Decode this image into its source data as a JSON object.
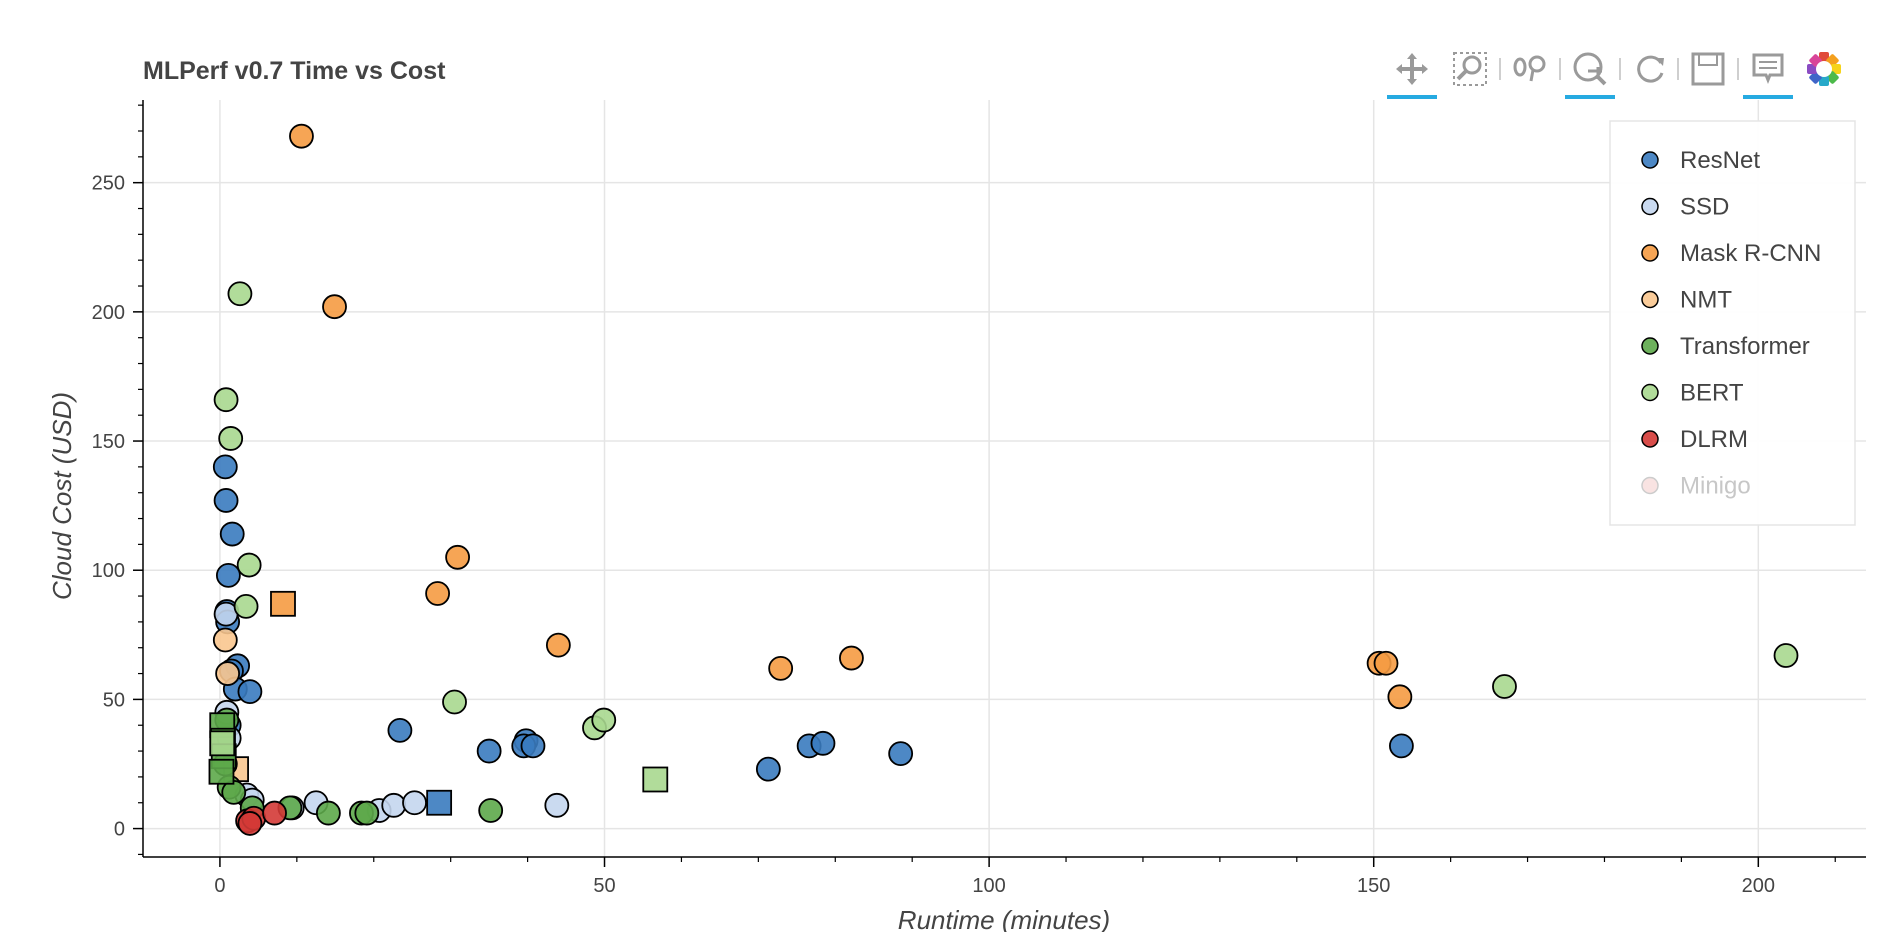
{
  "chart_data": {
    "type": "scatter",
    "title": "MLPerf v0.7 Time vs Cost",
    "xlabel": "Runtime (minutes)",
    "ylabel": "Cloud Cost (USD)",
    "xlim": [
      -10,
      214
    ],
    "ylim": [
      -11,
      282
    ],
    "xticks": [
      0,
      50,
      100,
      150,
      200
    ],
    "yticks": [
      0,
      50,
      100,
      150,
      200,
      250
    ],
    "xticks_minor": [
      10,
      20,
      30,
      40,
      60,
      70,
      80,
      90,
      110,
      120,
      130,
      140,
      160,
      170,
      180,
      190,
      210
    ],
    "yticks_minor": [
      10,
      20,
      30,
      40,
      60,
      70,
      80,
      90,
      110,
      120,
      130,
      140,
      160,
      170,
      180,
      190,
      210,
      220,
      230,
      240,
      260,
      270,
      280,
      -10
    ],
    "grid": true,
    "legend_position": "top-right",
    "series": [
      {
        "name": "ResNet",
        "color": "#3a7bbf",
        "marker": "circle",
        "muted": false,
        "points": [
          [
            0.7,
            140
          ],
          [
            0.8,
            127
          ],
          [
            1.6,
            114
          ],
          [
            1.1,
            98
          ],
          [
            0.9,
            84
          ],
          [
            1.0,
            80
          ],
          [
            2.3,
            63
          ],
          [
            1.5,
            61
          ],
          [
            2.0,
            54
          ],
          [
            3.9,
            53
          ],
          [
            1.2,
            40
          ],
          [
            23.4,
            38
          ],
          [
            35.0,
            30
          ],
          [
            39.8,
            34
          ],
          [
            39.5,
            32
          ],
          [
            40.7,
            32
          ],
          [
            71.3,
            23
          ],
          [
            76.6,
            32
          ],
          [
            78.4,
            33
          ],
          [
            88.5,
            29
          ],
          [
            153.6,
            32
          ]
        ],
        "square_points": [
          [
            28.5,
            10
          ]
        ]
      },
      {
        "name": "SSD",
        "color": "#c4d6ee",
        "marker": "circle",
        "muted": false,
        "points": [
          [
            0.8,
            83
          ],
          [
            0.9,
            45
          ],
          [
            1.2,
            35
          ],
          [
            3.5,
            13
          ],
          [
            4.2,
            11
          ],
          [
            12.5,
            10
          ],
          [
            9.4,
            8
          ],
          [
            20.7,
            7
          ],
          [
            22.6,
            9
          ],
          [
            25.3,
            10
          ],
          [
            43.8,
            9
          ]
        ],
        "square_points": []
      },
      {
        "name": "Mask R-CNN",
        "color": "#f59b42",
        "marker": "circle",
        "muted": false,
        "points": [
          [
            10.6,
            268
          ],
          [
            14.9,
            202
          ],
          [
            30.9,
            105
          ],
          [
            28.3,
            91
          ],
          [
            44.0,
            71
          ],
          [
            72.9,
            62
          ],
          [
            82.1,
            66
          ],
          [
            150.7,
            64
          ],
          [
            151.6,
            64
          ],
          [
            153.4,
            51
          ]
        ],
        "square_points": [
          [
            8.2,
            87
          ]
        ]
      },
      {
        "name": "NMT",
        "color": "#f9c68f",
        "marker": "circle",
        "muted": false,
        "points": [
          [
            0.7,
            73
          ],
          [
            1.0,
            60
          ]
        ],
        "square_points": [
          [
            2.1,
            23
          ]
        ]
      },
      {
        "name": "Transformer",
        "color": "#5da84a",
        "marker": "circle",
        "muted": false,
        "points": [
          [
            0.9,
            42
          ],
          [
            0.7,
            25
          ],
          [
            1.2,
            16
          ],
          [
            1.8,
            14
          ],
          [
            4.2,
            8
          ],
          [
            9.1,
            8
          ],
          [
            14.1,
            6
          ],
          [
            18.4,
            6
          ],
          [
            19.1,
            6
          ],
          [
            35.2,
            7
          ]
        ],
        "square_points": [
          [
            0.3,
            40
          ],
          [
            0.4,
            34
          ],
          [
            0.5,
            28
          ],
          [
            0.2,
            22
          ]
        ]
      },
      {
        "name": "BERT",
        "color": "#a8d88f",
        "marker": "circle",
        "muted": false,
        "points": [
          [
            2.6,
            207
          ],
          [
            0.8,
            166
          ],
          [
            1.4,
            151
          ],
          [
            3.8,
            102
          ],
          [
            3.4,
            86
          ],
          [
            30.5,
            49
          ],
          [
            48.7,
            39
          ],
          [
            49.9,
            42
          ],
          [
            167.0,
            55
          ],
          [
            203.6,
            67
          ]
        ],
        "square_points": [
          [
            56.6,
            19
          ],
          [
            0.3,
            33
          ]
        ]
      },
      {
        "name": "DLRM",
        "color": "#d43a36",
        "marker": "circle",
        "muted": false,
        "points": [
          [
            3.6,
            3
          ],
          [
            4.4,
            4
          ],
          [
            7.1,
            6
          ],
          [
            3.9,
            2
          ]
        ],
        "square_points": []
      },
      {
        "name": "Minigo",
        "color": "#f4c7c5",
        "marker": "circle",
        "muted": true,
        "points": [],
        "square_points": []
      }
    ]
  },
  "toolbar": {
    "tools": [
      {
        "name": "pan-tool",
        "icon": "pan-icon",
        "active": true
      },
      {
        "name": "box-zoom-tool",
        "icon": "box-zoom-icon",
        "active": false
      },
      {
        "name": "wheel-zoom-tool",
        "icon": "wheel-zoom-icon",
        "active": false
      },
      {
        "name": "zoom-in-tool",
        "icon": "zoom-in-icon",
        "active": true
      },
      {
        "name": "reset-tool",
        "icon": "reset-icon",
        "active": false
      },
      {
        "name": "save-tool",
        "icon": "save-icon",
        "active": false
      },
      {
        "name": "hover-tool",
        "icon": "hover-icon",
        "active": true
      },
      {
        "name": "bokeh-logo",
        "icon": "bokeh-logo-icon",
        "active": false
      }
    ]
  }
}
